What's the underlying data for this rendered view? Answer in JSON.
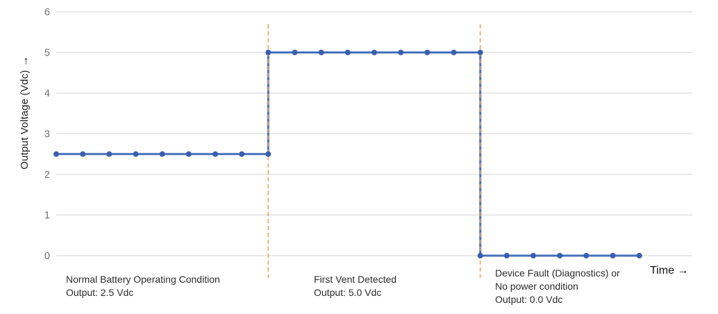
{
  "figure": {
    "y_axis_label": "Output Voltage (Vdc)",
    "y_axis_arrow": "→",
    "x_axis_label": "Time",
    "x_axis_arrow": "→"
  },
  "annotations": [
    {
      "lines": [
        "Normal Battery Operating Condition",
        "Output: 2.5 Vdc"
      ]
    },
    {
      "lines": [
        "First Vent Detected",
        "Output: 5.0 Vdc"
      ]
    },
    {
      "lines": [
        "Device Fault (Diagnostics) or",
        "No power condition",
        "Output: 0.0 Vdc"
      ]
    }
  ],
  "chart_data": {
    "type": "line",
    "title": "",
    "xlabel": "Time",
    "ylabel": "Output Voltage (Vdc)",
    "ylim": [
      0,
      6
    ],
    "yticks": [
      0,
      1,
      2,
      3,
      4,
      5,
      6
    ],
    "xlim": [
      0,
      24
    ],
    "grid": "horizontal-only",
    "legend_position": "none",
    "series": [
      {
        "name": "Output Voltage (Vdc)",
        "style": "step-line-with-markers",
        "line_color": "#4571bc",
        "marker_color": "#3a5fae",
        "points": [
          [
            0,
            2.5
          ],
          [
            1,
            2.5
          ],
          [
            2,
            2.5
          ],
          [
            3,
            2.5
          ],
          [
            4,
            2.5
          ],
          [
            5,
            2.5
          ],
          [
            6,
            2.5
          ],
          [
            7,
            2.5
          ],
          [
            8,
            2.5
          ],
          [
            8,
            5.0
          ],
          [
            9,
            5.0
          ],
          [
            10,
            5.0
          ],
          [
            11,
            5.0
          ],
          [
            12,
            5.0
          ],
          [
            13,
            5.0
          ],
          [
            14,
            5.0
          ],
          [
            15,
            5.0
          ],
          [
            16,
            5.0
          ],
          [
            16,
            0.0
          ],
          [
            17,
            0.0
          ],
          [
            18,
            0.0
          ],
          [
            19,
            0.0
          ],
          [
            20,
            0.0
          ],
          [
            21,
            0.0
          ],
          [
            22,
            0.0
          ]
        ]
      }
    ],
    "segments": [
      {
        "label": "Normal Battery Operating Condition",
        "output": "2.5 Vdc",
        "x_range": [
          0,
          8
        ]
      },
      {
        "label": "First Vent Detected",
        "output": "5.0 Vdc",
        "x_range": [
          8,
          16
        ]
      },
      {
        "label": "Device Fault (Diagnostics) or No power condition",
        "output": "0.0 Vdc",
        "x_range": [
          16,
          22
        ]
      }
    ],
    "event_lines": [
      {
        "x": 8,
        "style": "dashed",
        "color": "#eca45e"
      },
      {
        "x": 16,
        "style": "dashed",
        "color": "#eca45e"
      }
    ],
    "colors": {
      "grid": "#dcdcdc",
      "tick_text": "#6e6e6e",
      "line": "#4571bc",
      "marker": "#3a5fae",
      "event_dash": "#eca45e"
    }
  }
}
